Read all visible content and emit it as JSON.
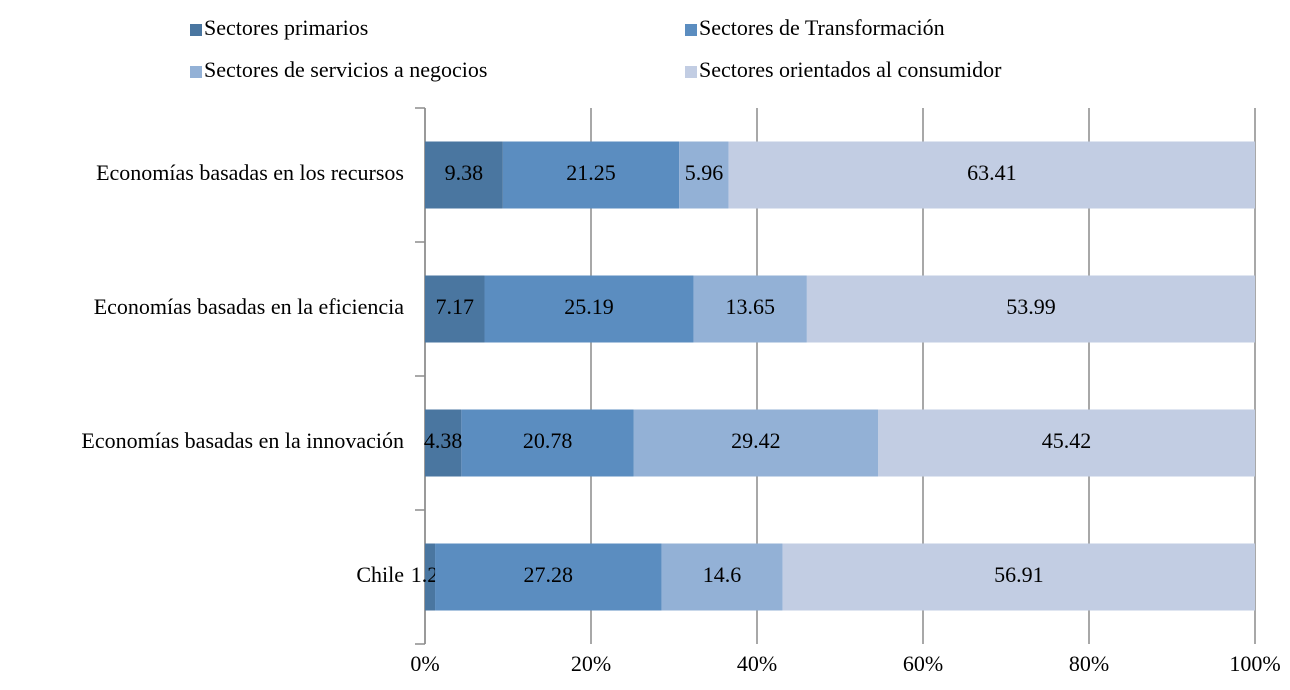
{
  "chart_data": {
    "type": "stacked-bar-horizontal",
    "categories": [
      "Economías basadas en los recursos",
      "Economías basadas en la eficiencia",
      "Economías basadas en la innovación",
      "Chile"
    ],
    "series": [
      {
        "name": "Sectores primarios",
        "color": "#4a76a0",
        "values": [
          9.38,
          7.17,
          4.38,
          1.21
        ]
      },
      {
        "name": "Sectores de Transformación",
        "color": "#5b8dc0",
        "values": [
          21.25,
          25.19,
          20.78,
          27.28
        ]
      },
      {
        "name": "Sectores de servicios a negocios",
        "color": "#93b1d6",
        "values": [
          5.96,
          13.65,
          29.42,
          14.6
        ]
      },
      {
        "name": "Sectores orientados al consumidor",
        "color": "#c2cde3",
        "values": [
          63.41,
          53.99,
          45.42,
          56.91
        ]
      }
    ],
    "xlim": [
      0,
      100
    ],
    "xticks": [
      {
        "value": 0,
        "label": "0%"
      },
      {
        "value": 20,
        "label": "20%"
      },
      {
        "value": 40,
        "label": "40%"
      },
      {
        "value": 60,
        "label": "60%"
      },
      {
        "value": 80,
        "label": "80%"
      },
      {
        "value": 100,
        "label": "100%"
      }
    ],
    "grid": true,
    "legend": "top"
  }
}
